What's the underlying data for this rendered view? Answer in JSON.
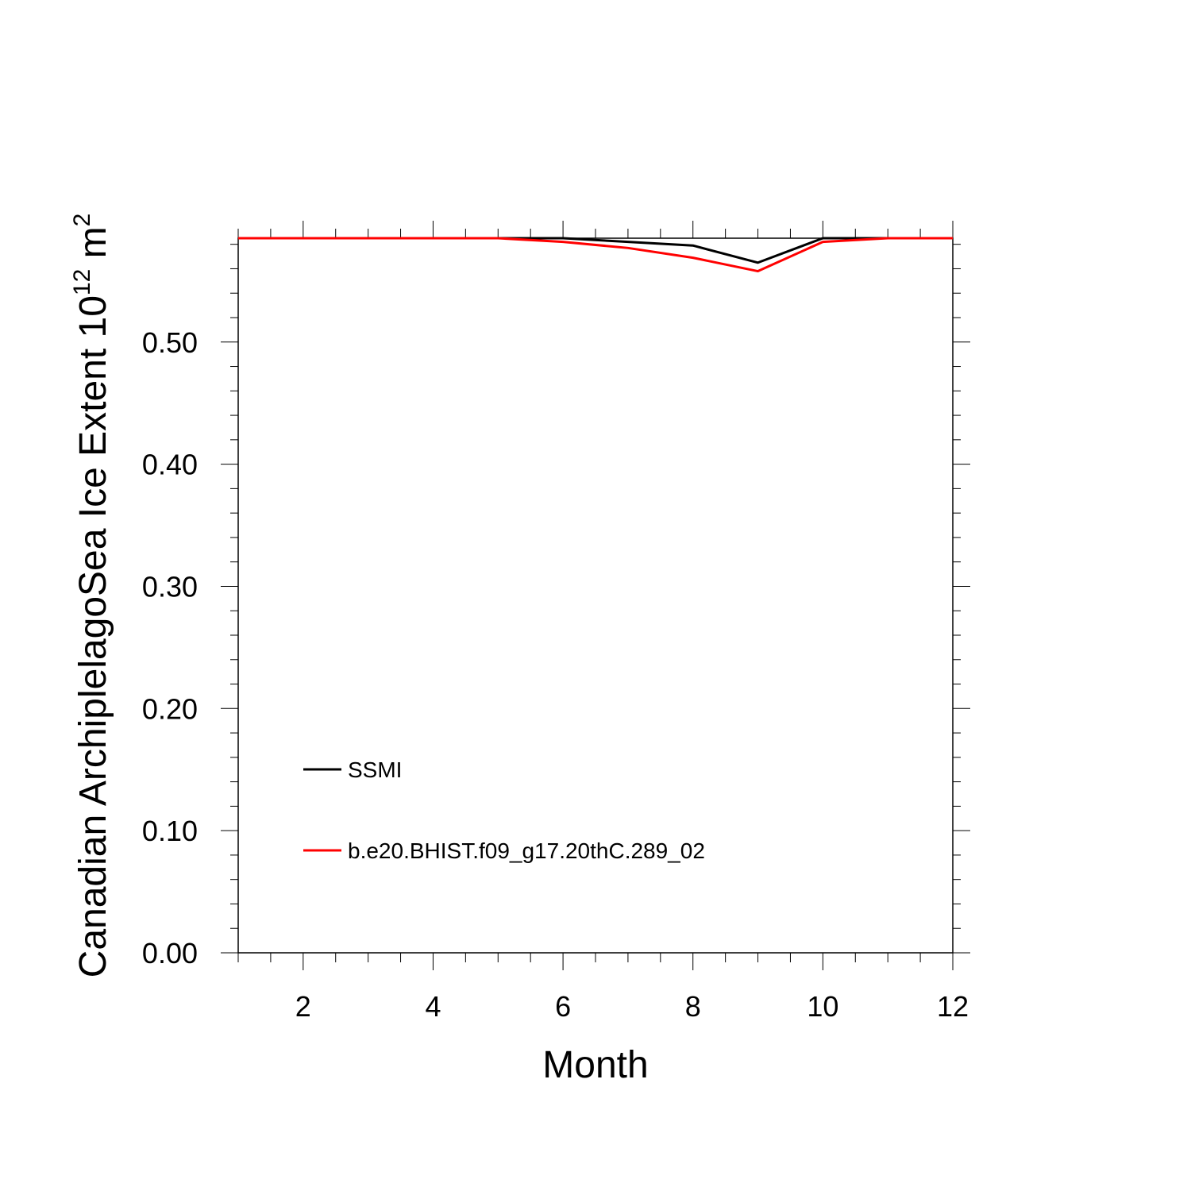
{
  "chart_data": {
    "type": "line",
    "xlabel": "Month",
    "ylabel": {
      "prefix": "Canadian ArchiplelagoSea Ice Extent 10",
      "exponent1": "12",
      "middle": " m",
      "exponent2": "2"
    },
    "xlim": [
      1,
      12
    ],
    "ylim": [
      0,
      0.585
    ],
    "x_major_ticks": [
      2,
      4,
      6,
      8,
      10,
      12
    ],
    "x_tick_labels": [
      "2",
      "4",
      "6",
      "8",
      "10",
      "12"
    ],
    "x_minor_step": 0.5,
    "y_major_ticks": [
      0,
      0.1,
      0.2,
      0.3,
      0.4,
      0.5
    ],
    "y_tick_labels": [
      "0.00",
      "0.10",
      "0.20",
      "0.30",
      "0.40",
      "0.50"
    ],
    "y_minor_step": 0.02,
    "grid": false,
    "legend_position": "lower-left",
    "x": [
      1,
      2,
      3,
      4,
      5,
      6,
      7,
      8,
      9,
      10,
      11,
      12
    ],
    "series": [
      {
        "name": "SSMI",
        "color": "#000000",
        "values": [
          0.585,
          0.585,
          0.585,
          0.585,
          0.585,
          0.585,
          0.582,
          0.579,
          0.565,
          0.585,
          0.585,
          0.585
        ]
      },
      {
        "name": "b.e20.BHIST.f09_g17.20thC.289_02",
        "color": "#ff0000",
        "values": [
          0.585,
          0.585,
          0.585,
          0.585,
          0.585,
          0.582,
          0.577,
          0.569,
          0.558,
          0.582,
          0.585,
          0.585
        ]
      }
    ]
  }
}
